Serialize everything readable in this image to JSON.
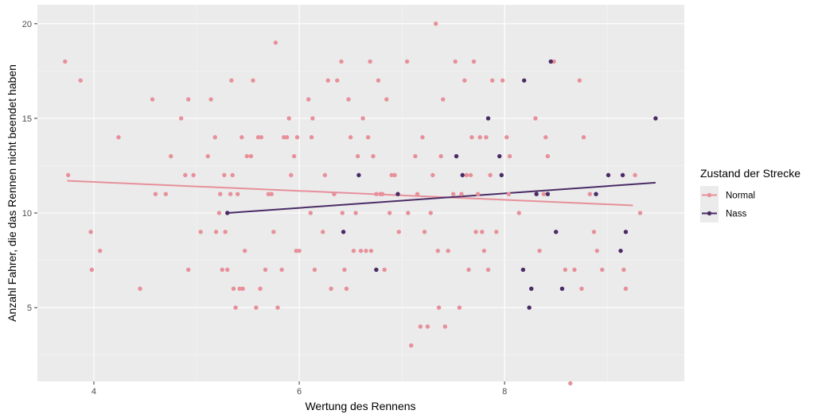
{
  "chart_data": {
    "type": "scatter",
    "xlabel": "Wertung des Rennens",
    "ylabel": "Anzahl Fahrer, die das Rennen nicht beendet haben",
    "xlim": [
      3.45,
      9.75
    ],
    "ylim": [
      1.1,
      21.0
    ],
    "x_ticks": [
      4,
      6,
      8
    ],
    "y_ticks": [
      5,
      10,
      15,
      20
    ],
    "grid": true,
    "legend": {
      "title": "Zustand der Strecke",
      "placement": "right",
      "entries": [
        "Normal",
        "Nass"
      ]
    },
    "series": [
      {
        "name": "Normal",
        "color": "#e7909a",
        "trend": {
          "x": [
            3.74,
            9.25
          ],
          "y": [
            11.7,
            10.4
          ]
        },
        "points": [
          [
            3.72,
            18
          ],
          [
            3.75,
            12
          ],
          [
            3.87,
            17
          ],
          [
            3.97,
            9
          ],
          [
            3.98,
            7
          ],
          [
            4.06,
            8
          ],
          [
            4.24,
            14
          ],
          [
            4.45,
            6
          ],
          [
            4.57,
            16
          ],
          [
            4.6,
            11
          ],
          [
            4.7,
            11
          ],
          [
            4.75,
            13
          ],
          [
            4.85,
            15
          ],
          [
            4.89,
            12
          ],
          [
            4.92,
            16
          ],
          [
            4.92,
            7
          ],
          [
            4.97,
            12
          ],
          [
            5.04,
            9
          ],
          [
            5.11,
            13
          ],
          [
            5.14,
            16
          ],
          [
            5.18,
            14
          ],
          [
            5.19,
            9
          ],
          [
            5.22,
            10
          ],
          [
            5.23,
            11
          ],
          [
            5.25,
            7
          ],
          [
            5.27,
            12
          ],
          [
            5.28,
            9
          ],
          [
            5.3,
            7
          ],
          [
            5.33,
            11
          ],
          [
            5.34,
            17
          ],
          [
            5.35,
            12
          ],
          [
            5.36,
            6
          ],
          [
            5.38,
            5
          ],
          [
            5.4,
            11
          ],
          [
            5.42,
            6
          ],
          [
            5.44,
            14
          ],
          [
            5.45,
            6
          ],
          [
            5.47,
            8
          ],
          [
            5.49,
            13
          ],
          [
            5.53,
            13
          ],
          [
            5.55,
            17
          ],
          [
            5.58,
            5
          ],
          [
            5.6,
            14
          ],
          [
            5.62,
            6
          ],
          [
            5.63,
            14
          ],
          [
            5.67,
            7
          ],
          [
            5.7,
            11
          ],
          [
            5.73,
            11
          ],
          [
            5.75,
            9
          ],
          [
            5.77,
            19
          ],
          [
            5.79,
            5
          ],
          [
            5.83,
            7
          ],
          [
            5.85,
            14
          ],
          [
            5.88,
            14
          ],
          [
            5.9,
            15
          ],
          [
            5.92,
            12
          ],
          [
            5.95,
            13
          ],
          [
            5.97,
            8
          ],
          [
            5.98,
            14
          ],
          [
            6.0,
            8
          ],
          [
            6.09,
            16
          ],
          [
            6.11,
            10
          ],
          [
            6.12,
            14
          ],
          [
            6.13,
            15
          ],
          [
            6.15,
            7
          ],
          [
            6.23,
            9
          ],
          [
            6.25,
            12
          ],
          [
            6.28,
            17
          ],
          [
            6.31,
            6
          ],
          [
            6.34,
            11
          ],
          [
            6.37,
            17
          ],
          [
            6.41,
            18
          ],
          [
            6.42,
            10
          ],
          [
            6.44,
            7
          ],
          [
            6.46,
            6
          ],
          [
            6.48,
            16
          ],
          [
            6.5,
            14
          ],
          [
            6.53,
            8
          ],
          [
            6.55,
            10
          ],
          [
            6.57,
            13
          ],
          [
            6.6,
            8
          ],
          [
            6.62,
            15
          ],
          [
            6.65,
            8
          ],
          [
            6.67,
            14
          ],
          [
            6.69,
            18
          ],
          [
            6.7,
            8
          ],
          [
            6.72,
            13
          ],
          [
            6.75,
            11
          ],
          [
            6.77,
            17
          ],
          [
            6.79,
            11
          ],
          [
            6.81,
            11
          ],
          [
            6.83,
            7
          ],
          [
            6.85,
            16
          ],
          [
            6.88,
            10
          ],
          [
            6.9,
            12
          ],
          [
            6.93,
            12
          ],
          [
            6.97,
            9
          ],
          [
            7.05,
            18
          ],
          [
            7.06,
            10
          ],
          [
            7.09,
            3
          ],
          [
            7.13,
            13
          ],
          [
            7.15,
            11
          ],
          [
            7.18,
            4
          ],
          [
            7.2,
            14
          ],
          [
            7.22,
            9
          ],
          [
            7.25,
            4
          ],
          [
            7.28,
            10
          ],
          [
            7.3,
            12
          ],
          [
            7.33,
            20
          ],
          [
            7.35,
            8
          ],
          [
            7.36,
            5
          ],
          [
            7.38,
            13
          ],
          [
            7.4,
            16
          ],
          [
            7.42,
            4
          ],
          [
            7.45,
            8
          ],
          [
            7.5,
            11
          ],
          [
            7.52,
            18
          ],
          [
            7.56,
            5
          ],
          [
            7.58,
            11
          ],
          [
            7.61,
            17
          ],
          [
            7.63,
            12
          ],
          [
            7.65,
            7
          ],
          [
            7.67,
            12
          ],
          [
            7.68,
            14
          ],
          [
            7.7,
            18
          ],
          [
            7.72,
            9
          ],
          [
            7.74,
            11
          ],
          [
            7.76,
            14
          ],
          [
            7.78,
            9
          ],
          [
            7.8,
            8
          ],
          [
            7.82,
            14
          ],
          [
            7.84,
            7
          ],
          [
            7.86,
            12
          ],
          [
            7.88,
            17
          ],
          [
            7.92,
            9
          ],
          [
            7.98,
            17
          ],
          [
            8.02,
            14
          ],
          [
            8.04,
            11
          ],
          [
            8.05,
            13
          ],
          [
            8.14,
            10
          ],
          [
            8.3,
            15
          ],
          [
            8.34,
            8
          ],
          [
            8.38,
            11
          ],
          [
            8.4,
            14
          ],
          [
            8.42,
            13
          ],
          [
            8.48,
            18
          ],
          [
            8.59,
            7
          ],
          [
            8.64,
            1
          ],
          [
            8.68,
            7
          ],
          [
            8.73,
            17
          ],
          [
            8.75,
            6
          ],
          [
            8.77,
            14
          ],
          [
            8.83,
            11
          ],
          [
            8.87,
            9
          ],
          [
            8.9,
            8
          ],
          [
            8.95,
            7
          ],
          [
            9.16,
            7
          ],
          [
            9.18,
            6
          ],
          [
            9.27,
            12
          ],
          [
            9.32,
            10
          ]
        ]
      },
      {
        "name": "Nass",
        "color": "#4a2b66",
        "trend": {
          "x": [
            5.3,
            9.47
          ],
          "y": [
            10.0,
            11.6
          ]
        },
        "points": [
          [
            5.3,
            10
          ],
          [
            6.43,
            9
          ],
          [
            6.58,
            12
          ],
          [
            6.75,
            7
          ],
          [
            6.96,
            11
          ],
          [
            7.53,
            13
          ],
          [
            7.59,
            12
          ],
          [
            7.84,
            15
          ],
          [
            7.95,
            13
          ],
          [
            7.97,
            12
          ],
          [
            8.18,
            7
          ],
          [
            8.19,
            17
          ],
          [
            8.24,
            5
          ],
          [
            8.26,
            6
          ],
          [
            8.31,
            11
          ],
          [
            8.42,
            11
          ],
          [
            8.45,
            18
          ],
          [
            8.5,
            9
          ],
          [
            8.56,
            6
          ],
          [
            8.89,
            11
          ],
          [
            9.01,
            12
          ],
          [
            9.13,
            8
          ],
          [
            9.15,
            12
          ],
          [
            9.18,
            9
          ],
          [
            9.47,
            15
          ]
        ]
      }
    ]
  }
}
